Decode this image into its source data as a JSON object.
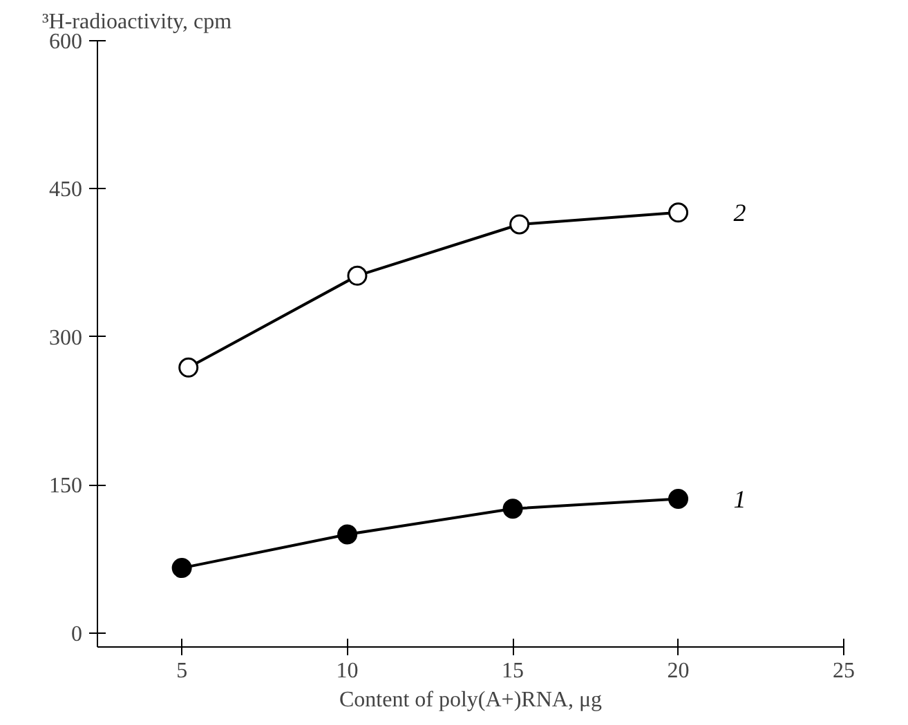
{
  "chart_data": {
    "type": "line",
    "ylabel": "³H-radioactivity, cpm",
    "xlabel": "Content of poly(A+)RNA, μg",
    "series": [
      {
        "name": "1",
        "color": "#000000",
        "values": [
          66,
          100,
          126,
          136
        ],
        "x": [
          5,
          10,
          15,
          20
        ]
      },
      {
        "name": "2",
        "color": "#ffffff",
        "values": [
          269,
          362,
          414,
          426
        ],
        "x": [
          5.2,
          10.3,
          15.2,
          20
        ]
      }
    ],
    "xlim": [
      2.45,
      25
    ],
    "ylim": [
      -14,
      600
    ],
    "xticks": [
      5,
      10,
      15,
      20,
      25
    ],
    "yticks": [
      0,
      150,
      300,
      450,
      600
    ],
    "marker": "circle",
    "line_style": "solid",
    "grid": false
  }
}
